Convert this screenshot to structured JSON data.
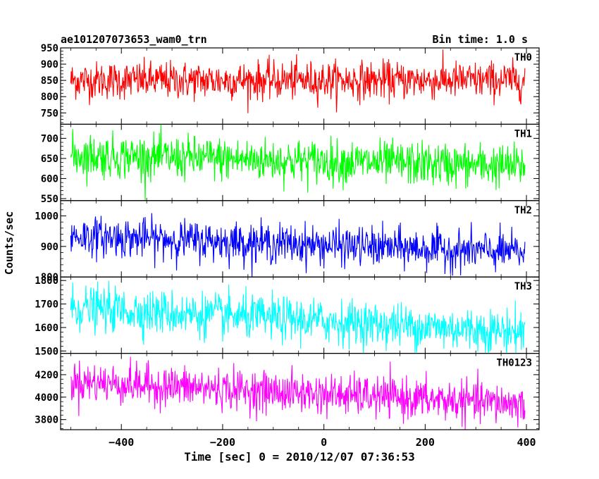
{
  "title_left": "ae101207073653_wam0_trn",
  "title_right": "Bin time: 1.0 s",
  "chart_data": {
    "type": "line",
    "xlabel": "Time [sec] 0 = 2010/12/07 07:36:53",
    "ylabel": "Counts/sec",
    "xlim": [
      -520,
      425
    ],
    "xticks": [
      -400,
      -200,
      0,
      200,
      400
    ],
    "x_step": 1,
    "x_start": -500,
    "x_end": 397,
    "panels": [
      {
        "name": "TH0",
        "color": "#ff0000",
        "ylim": [
          715,
          950
        ],
        "yticks": [
          750,
          800,
          850,
          900,
          950
        ],
        "trend_start": 850,
        "trend_end": 850,
        "noise_sd": 29
      },
      {
        "name": "TH1",
        "color": "#00ff00",
        "ylim": [
          545,
          735
        ],
        "yticks": [
          550,
          600,
          650,
          700
        ],
        "trend_start": 658,
        "trend_end": 630,
        "noise_sd": 27
      },
      {
        "name": "TH2",
        "color": "#0000ff",
        "ylim": [
          800,
          1050
        ],
        "yticks": [
          800,
          900,
          1000
        ],
        "trend_start": 935,
        "trend_end": 880,
        "noise_sd": 32
      },
      {
        "name": "TH3",
        "color": "#00ffff",
        "ylim": [
          1490,
          1815
        ],
        "yticks": [
          1500,
          1600,
          1700,
          1800
        ],
        "trend_start": 1685,
        "trend_end": 1580,
        "noise_sd": 47
      },
      {
        "name": "TH0123",
        "color": "#ff00ff",
        "ylim": [
          3710,
          4390
        ],
        "yticks": [
          3800,
          4000,
          4200
        ],
        "trend_start": 4140,
        "trend_end": 3935,
        "noise_sd": 90
      }
    ]
  }
}
